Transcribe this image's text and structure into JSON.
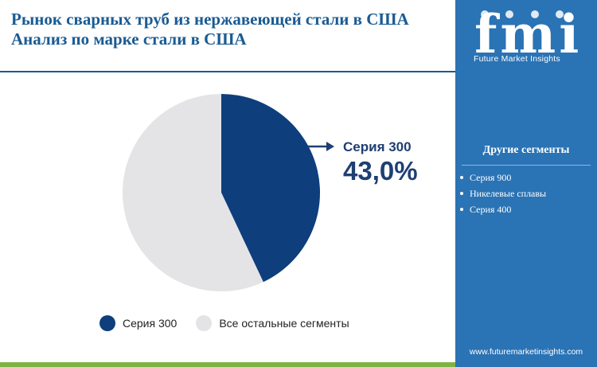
{
  "header": {
    "title_line1": "Рынок сварных труб из нержавеющей стали в США",
    "title_line2": "Анализ по марке стали в США"
  },
  "sidebar": {
    "logo_text": "fmi",
    "logo_subtitle": "Future Market Insights",
    "segments_heading": "Другие сегменты",
    "segments": [
      "Серия 900",
      "Никелевые сплавы",
      "Серия 400"
    ],
    "website": "www.futuremarketinsights.com"
  },
  "colors": {
    "highlight": "#0e3e7c",
    "rest": "#e4e4e6",
    "accent": "#2a73b5",
    "strip": "#7cb342"
  },
  "chart_data": {
    "type": "pie",
    "slices": [
      {
        "name": "Серия 300",
        "value": 43.0
      },
      {
        "name": "Все остальные сегменты",
        "value": 57.0
      }
    ],
    "callout": {
      "label": "Серия 300",
      "value_text": "43,0%"
    },
    "legend": [
      "Серия 300",
      "Все остальные сегменты"
    ]
  }
}
